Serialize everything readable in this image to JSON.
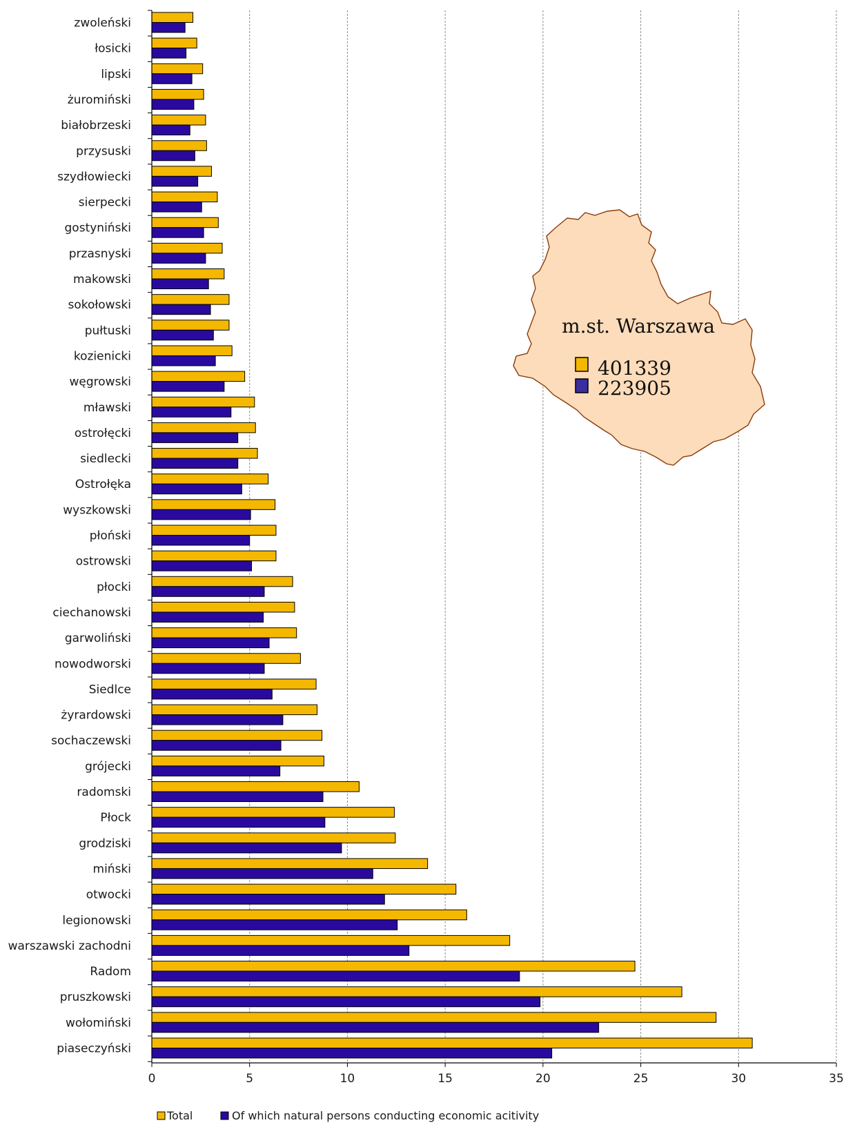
{
  "chart_data": {
    "type": "bar",
    "orientation": "horizontal",
    "categories": [
      "zwoleński",
      "łosicki",
      "lipski",
      "żuromiński",
      "białobrzeski",
      "przysuski",
      "szydłowiecki",
      "sierpecki",
      "gostyniński",
      "przasnyski",
      "makowski",
      "sokołowski",
      "pułtuski",
      "kozienicki",
      "węgrowski",
      "mławski",
      "ostrołęcki",
      "siedlecki",
      "Ostrołęka",
      "wyszkowski",
      "płoński",
      "ostrowski",
      "płocki",
      "ciechanowski",
      "garwoliński",
      "nowodworski",
      "Siedlce",
      "żyrardowski",
      "sochaczewski",
      "grójecki",
      "radomski",
      "Płock",
      "grodziski",
      "miński",
      "otwocki",
      "legionowski",
      "warszawski zachodni",
      "Radom",
      "pruszkowski",
      "wołomiński",
      "piaseczyński"
    ],
    "series": [
      {
        "name": "Total",
        "color": "#f5b800",
        "values": [
          2.1,
          2.3,
          2.6,
          2.65,
          2.75,
          2.8,
          3.05,
          3.35,
          3.4,
          3.6,
          3.7,
          3.95,
          3.95,
          4.1,
          4.75,
          5.25,
          5.3,
          5.4,
          5.95,
          6.3,
          6.35,
          6.35,
          7.2,
          7.3,
          7.4,
          7.6,
          8.4,
          8.45,
          8.7,
          8.8,
          10.6,
          12.4,
          12.45,
          14.1,
          15.55,
          16.1,
          18.3,
          24.7,
          27.1,
          28.85,
          30.7
        ]
      },
      {
        "name": "Of which natural persons conducting economic acitivity",
        "color": "#2a0a9e",
        "values": [
          1.7,
          1.75,
          2.05,
          2.15,
          1.95,
          2.2,
          2.35,
          2.55,
          2.65,
          2.75,
          2.9,
          3.0,
          3.15,
          3.25,
          3.7,
          4.05,
          4.4,
          4.4,
          4.6,
          5.05,
          5.0,
          5.1,
          5.75,
          5.7,
          6.0,
          5.75,
          6.15,
          6.7,
          6.6,
          6.55,
          8.75,
          8.85,
          9.7,
          11.3,
          11.9,
          12.55,
          13.15,
          18.8,
          19.85,
          22.85,
          20.45
        ]
      }
    ],
    "xlim": [
      0,
      35
    ],
    "xticks": [
      "0",
      "5",
      "10",
      "15",
      "20",
      "25",
      "30",
      "35"
    ],
    "grid": "vertical dashed",
    "legend_position": "bottom-left",
    "inset": {
      "title": "m.st. Warszawa",
      "total": "401339",
      "natural_persons": "223905"
    }
  }
}
